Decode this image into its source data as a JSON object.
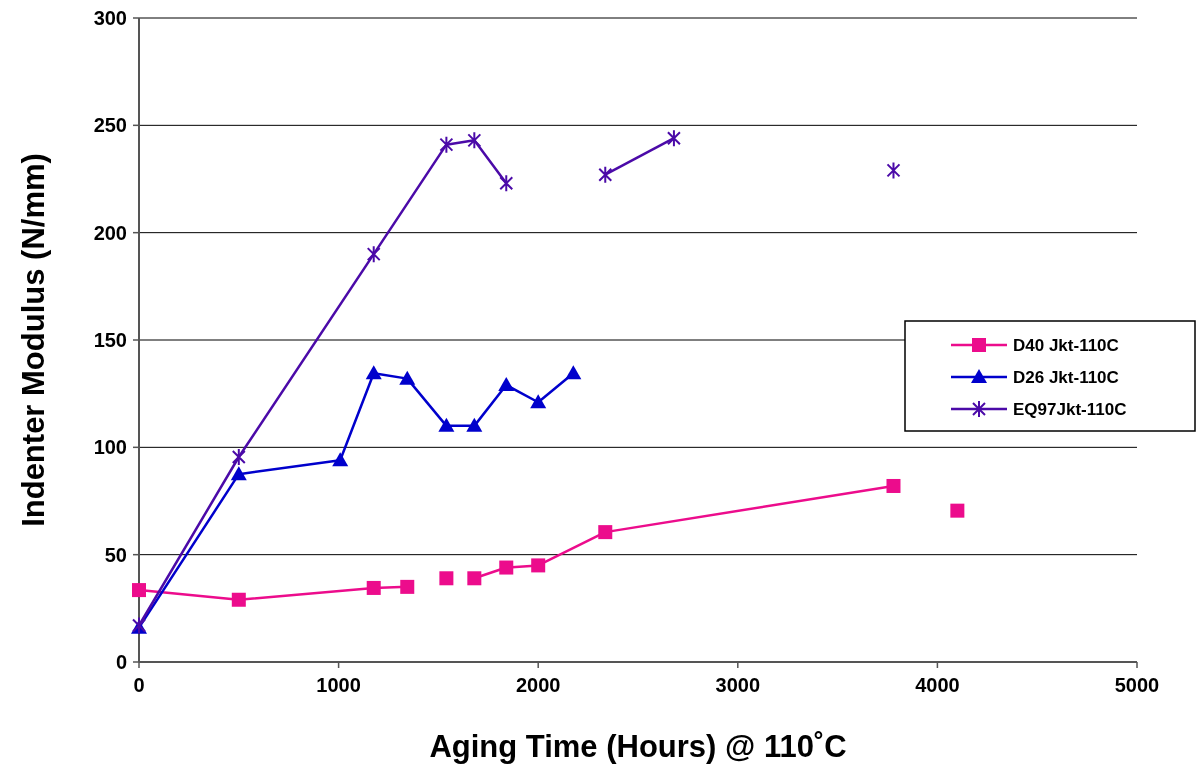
{
  "chart_data": {
    "type": "line",
    "xlabel": "Aging Time (Hours) @ 110˚C",
    "ylabel": "Indenter Modulus (N/mm)",
    "xlim": [
      0,
      5000
    ],
    "xticks": [
      0,
      1000,
      2000,
      3000,
      4000,
      5000
    ],
    "ylim": [
      0,
      300
    ],
    "yticks": [
      0,
      50,
      100,
      150,
      200,
      250,
      300
    ],
    "grid": "y",
    "legend": "right",
    "series": [
      {
        "name": "D40 Jkt-110C",
        "color": "#ec0c8c",
        "marker": "square",
        "x": [
          0,
          500,
          1176,
          1344
        ],
        "values": [
          33.5,
          29,
          34.5,
          35
        ]
      },
      {
        "color": "#ec0c8c",
        "marker": "square",
        "x": [
          1540
        ],
        "values": [
          39
        ]
      },
      {
        "color": "#ec0c8c",
        "marker": "square",
        "x": [
          1680,
          1840,
          2000,
          2336,
          3780
        ],
        "values": [
          39,
          44,
          45,
          60.5,
          82
        ]
      },
      {
        "color": "#ec0c8c",
        "marker": "square",
        "x": [
          4100
        ],
        "values": [
          70.5
        ]
      },
      {
        "name": "D26 Jkt-110C",
        "color": "#0000cc",
        "marker": "triangle",
        "x": [
          0,
          500,
          1008,
          1176,
          1344,
          1540,
          1680,
          1840,
          2000,
          2176
        ],
        "values": [
          16,
          87.5,
          94,
          134.5,
          132,
          110,
          110,
          129,
          121,
          134.5
        ]
      },
      {
        "name": "EQ97Jkt-110C",
        "color": "#4b0aa8",
        "marker": "cross",
        "x": [
          0,
          500,
          1176,
          1540,
          1680,
          1840
        ],
        "values": [
          17,
          95.5,
          190,
          241,
          243,
          223
        ]
      },
      {
        "color": "#4b0aa8",
        "marker": "cross",
        "x": [
          2336,
          2680
        ],
        "values": [
          227,
          244
        ]
      },
      {
        "color": "#4b0aa8",
        "marker": "cross",
        "x": [
          3780
        ],
        "values": [
          229
        ]
      }
    ]
  }
}
